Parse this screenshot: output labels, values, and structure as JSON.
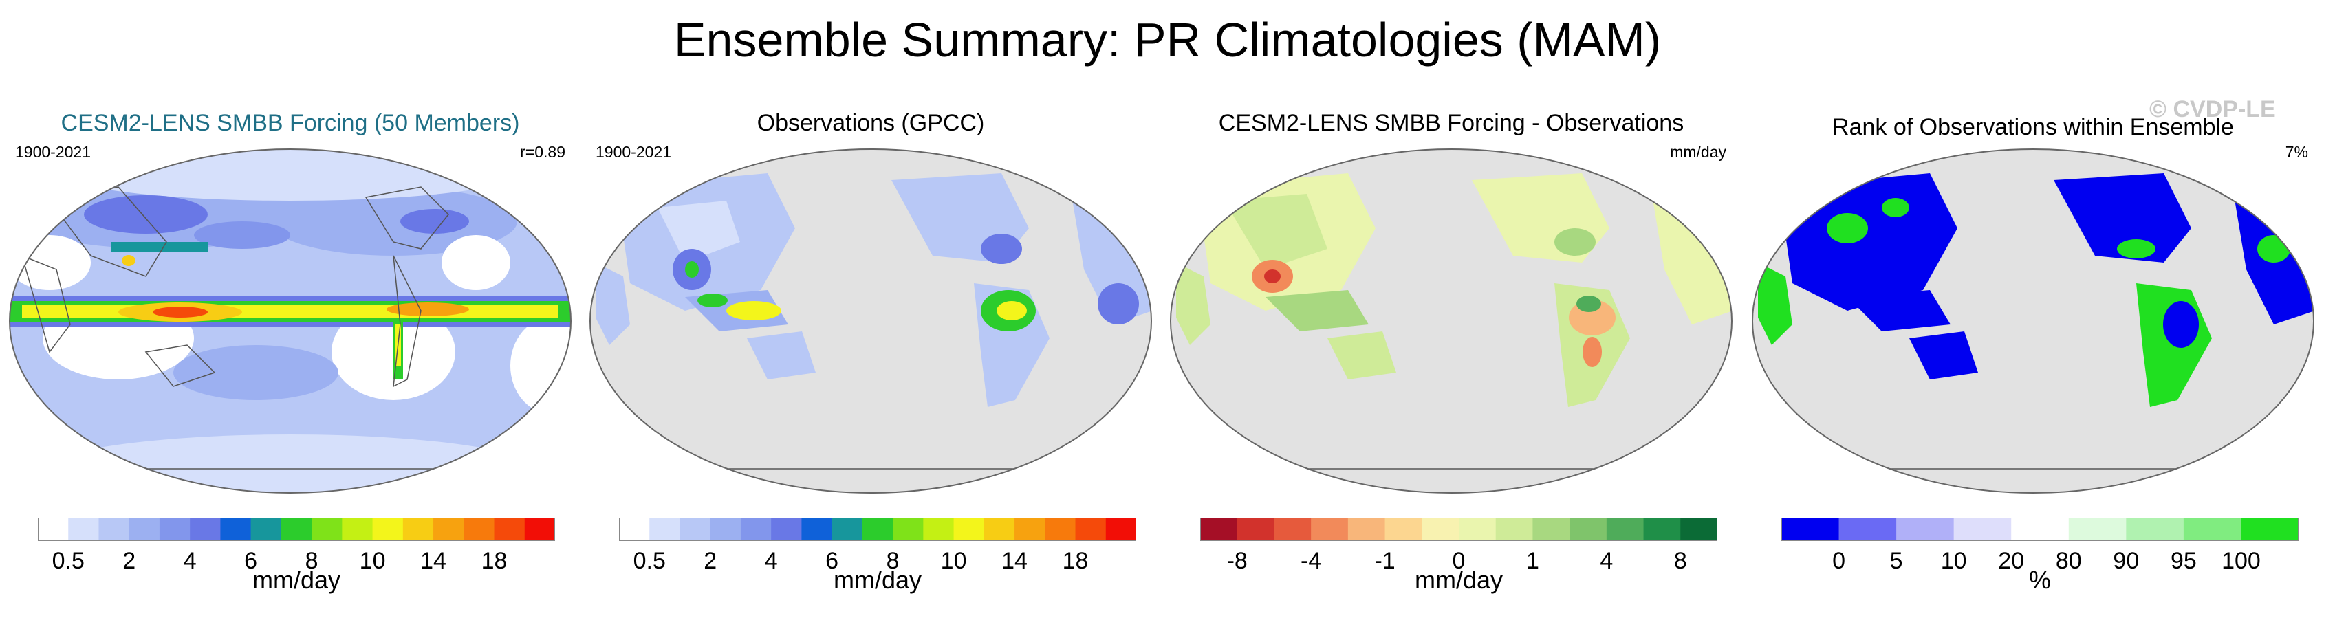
{
  "title": "Ensemble Summary: PR Climatologies (MAM)",
  "watermark": "© CVDP-LE",
  "panels": [
    {
      "title": "CESM2-LENS SMBB Forcing (50 Members)",
      "title_color": "#1f6f86",
      "left_label": "1900-2021",
      "right_label": "r=0.89",
      "colorbar": {
        "unit": "mm/day",
        "colors": [
          "#ffffff",
          "#d6e0fb",
          "#b8c8f6",
          "#9cb0f1",
          "#8296ec",
          "#6978e6",
          "#0f61d9",
          "#17969c",
          "#2ccc2c",
          "#7fe219",
          "#c4f014",
          "#f3f51b",
          "#f7cd14",
          "#f7a20f",
          "#f77a0c",
          "#f54a0a",
          "#f20e06"
        ],
        "tick_labels": [
          "0.5",
          "2",
          "4",
          "6",
          "8",
          "10",
          "14",
          "18"
        ]
      }
    },
    {
      "title": "Observations (GPCC)",
      "title_color": "#000000",
      "left_label": "1900-2021",
      "right_label": "",
      "colorbar": {
        "unit": "mm/day",
        "colors": [
          "#ffffff",
          "#d6e0fb",
          "#b8c8f6",
          "#9cb0f1",
          "#8296ec",
          "#6978e6",
          "#0f61d9",
          "#17969c",
          "#2ccc2c",
          "#7fe219",
          "#c4f014",
          "#f3f51b",
          "#f7cd14",
          "#f7a20f",
          "#f77a0c",
          "#f54a0a",
          "#f20e06"
        ],
        "tick_labels": [
          "0.5",
          "2",
          "4",
          "6",
          "8",
          "10",
          "14",
          "18"
        ]
      }
    },
    {
      "title": "CESM2-LENS SMBB Forcing - Observations",
      "title_color": "#000000",
      "left_label": "",
      "right_label": "mm/day",
      "colorbar": {
        "unit": "mm/day",
        "colors": [
          "#a50f26",
          "#d2322c",
          "#e65a3c",
          "#f28a5a",
          "#f8b67a",
          "#fcd690",
          "#f8f2b0",
          "#eaf5ae",
          "#cfeb98",
          "#a8d880",
          "#7fc46b",
          "#4fac5a",
          "#1f8f48",
          "#0b6b36"
        ],
        "tick_labels": [
          "-8",
          "-4",
          "-1",
          "0",
          "1",
          "4",
          "8"
        ]
      }
    },
    {
      "title": "Rank of Observations within Ensemble",
      "title_color": "#000000",
      "left_label": "",
      "right_label": "7%",
      "colorbar": {
        "unit": "%",
        "colors": [
          "#0000f0",
          "#6a6af4",
          "#b0b0f8",
          "#dedefb",
          "#ffffff",
          "#ddfadd",
          "#b0f2b0",
          "#80ec80",
          "#20e020"
        ],
        "tick_labels": [
          "0",
          "5",
          "10",
          "20",
          "80",
          "90",
          "95",
          "100"
        ]
      }
    }
  ]
}
